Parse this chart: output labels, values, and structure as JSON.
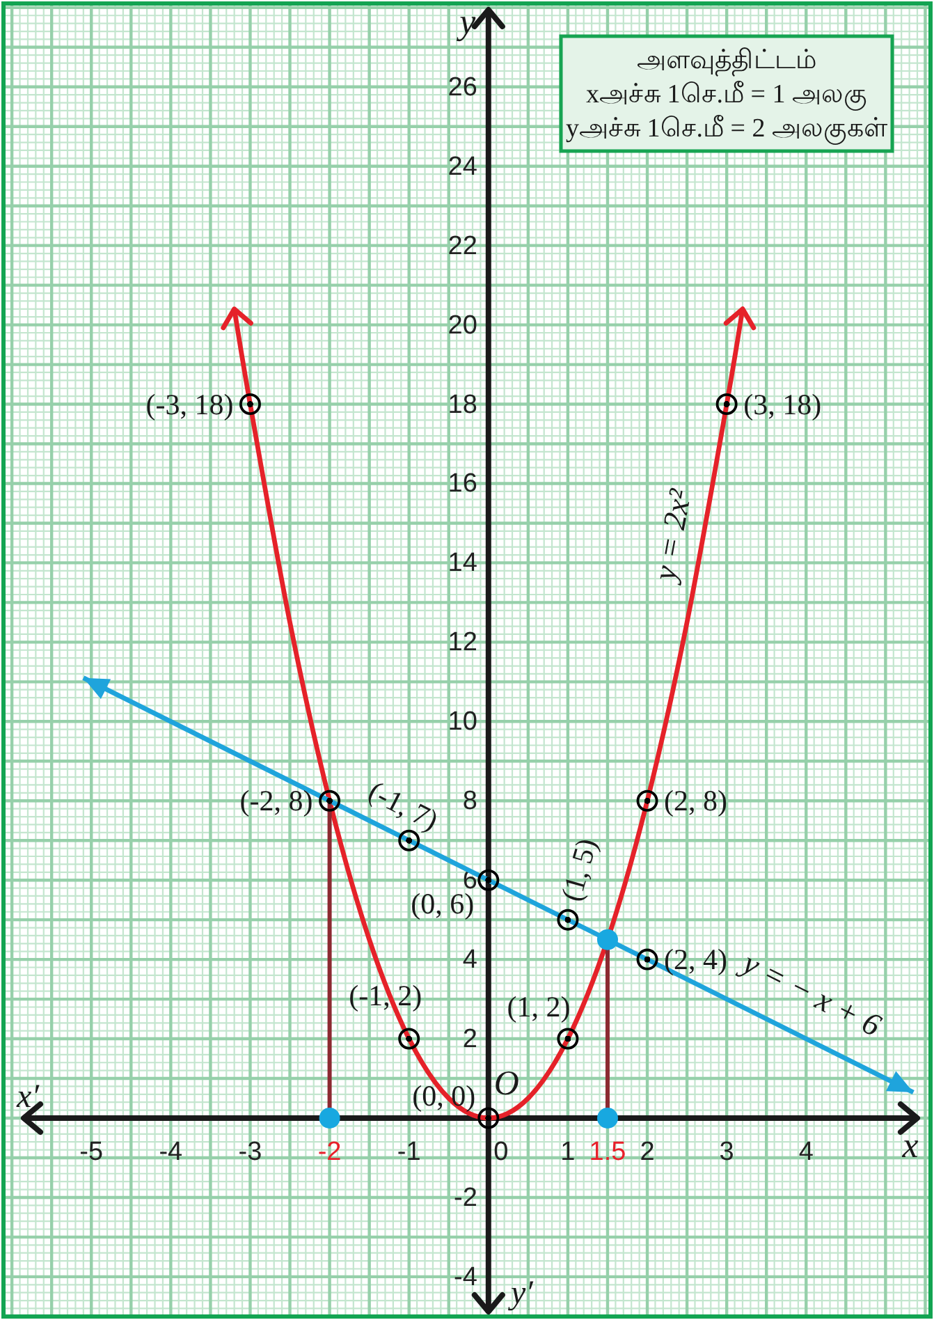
{
  "chart_data": {
    "type": "line",
    "title": "அளவுத்திட்டம்",
    "annotations": [
      {
        "text": "(-3, 18)",
        "x": -3,
        "y": 18
      },
      {
        "text": "(3, 18)",
        "x": 3,
        "y": 18
      },
      {
        "text": "(-2, 8)",
        "x": -2,
        "y": 8
      },
      {
        "text": "(2, 8)",
        "x": 2,
        "y": 8
      },
      {
        "text": "(-1, 7)",
        "x": -1,
        "y": 7
      },
      {
        "text": "(0, 6)",
        "x": 0,
        "y": 6
      },
      {
        "text": "(1, 5)",
        "x": 1,
        "y": 5
      },
      {
        "text": "(2, 4)",
        "x": 2,
        "y": 4
      },
      {
        "text": "(-1, 2)",
        "x": -1,
        "y": 2
      },
      {
        "text": "(1, 2)",
        "x": 1,
        "y": 2
      },
      {
        "text": "(0, 0)",
        "x": 0,
        "y": 0
      },
      {
        "text": "O",
        "x": 0,
        "y": 0
      },
      {
        "text": "-2",
        "x": -2,
        "y": 0
      },
      {
        "text": "1.5",
        "x": 1.5,
        "y": 0
      },
      "xஅச்சு 1செ.மீ = 1 அலகு",
      "yஅச்சு 1செ.மீ = 2 அலகுகள்",
      "x′",
      "y′"
    ],
    "xlabel": "x",
    "ylabel": "y",
    "xlim": [
      -6.08,
      5.54
    ],
    "ylim": [
      -4.95,
      28.05
    ],
    "xticks": [
      -5,
      -4,
      -3,
      -1,
      0,
      1,
      2,
      3,
      4
    ],
    "yticks": [
      -4,
      -2,
      2,
      4,
      6,
      8,
      10,
      12,
      14,
      16,
      18,
      20,
      22,
      24,
      26
    ],
    "grid": true,
    "series": [
      {
        "type": "line",
        "name": "y = 2x²",
        "color": "#e52229",
        "x": [
          -3.2,
          -3,
          -2.5,
          -2,
          -1.5,
          -1,
          -0.5,
          0,
          0.5,
          1,
          1.5,
          2,
          2.5,
          3,
          3.2
        ],
        "values": [
          20.4,
          18,
          12.5,
          8,
          4.5,
          2,
          0.5,
          0,
          0.5,
          2,
          4.5,
          8,
          12.5,
          18,
          20.4
        ],
        "marker": "none"
      },
      {
        "type": "line",
        "name": "y = − x + 6",
        "color": "#1fa4dc",
        "x": [
          -5.1,
          5.35
        ],
        "values": [
          11.1,
          0.65
        ],
        "marker": "none"
      },
      {
        "type": "line",
        "color": "#8c2a31",
        "x": [
          -2,
          -2
        ],
        "values": [
          8,
          0
        ],
        "marker": "none"
      },
      {
        "type": "line",
        "color": "#8c2a31",
        "x": [
          1.5,
          1.5
        ],
        "values": [
          4.5,
          0
        ],
        "marker": "none"
      },
      {
        "type": "scatter",
        "color": "#000000",
        "x": [
          -3,
          -2,
          -1,
          0,
          1,
          2,
          3
        ],
        "values": [
          18,
          8,
          2,
          0,
          2,
          8,
          18
        ],
        "marker": "circle"
      },
      {
        "type": "scatter",
        "color": "#000000",
        "x": [
          -1,
          0,
          1,
          2
        ],
        "values": [
          7,
          6,
          5,
          4
        ],
        "marker": "circle"
      },
      {
        "type": "scatter",
        "color": "#18a8e0",
        "x": [
          -2,
          1.5,
          1.5
        ],
        "values": [
          0,
          0,
          4.5
        ],
        "marker": "circle"
      }
    ]
  }
}
